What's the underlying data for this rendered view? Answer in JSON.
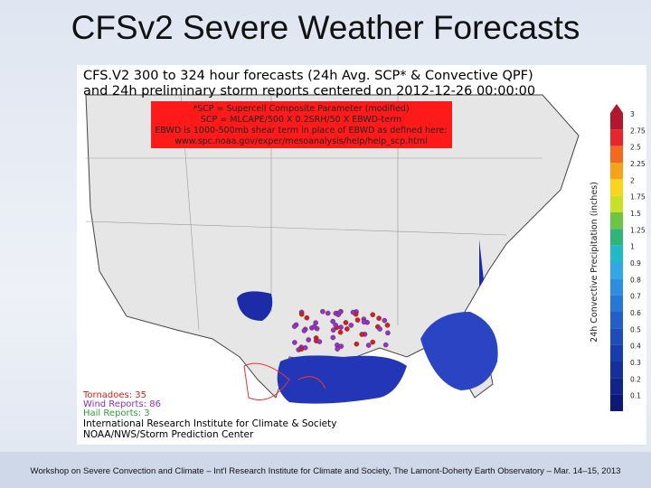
{
  "slide": {
    "title": "CFSv2 Severe Weather Forecasts",
    "map": {
      "title_lines": [
        "CFS.V2 300 to 324 hour forecasts (24h Avg. SCP* & Convective QPF)",
        "and 24h preliminary storm reports centered on 2012-12-26 00:00:00"
      ],
      "note_lines": [
        "*SCP = Supercell Composite Parameter (modified)",
        "SCP = MLCAPE/500 X 0.2SRH/50 X EBWD-term",
        "EBWD is 1000-500mb shear term in place of EBWD as defined here:",
        "www.spc.noaa.gov/exper/mesoanalysis/help/help_scp.html"
      ],
      "colorbar_label": "24h Convective Precipitation (inches)",
      "colorbar_ticks": [
        "3",
        "2.75",
        "2.5",
        "2.25",
        "2",
        "1.75",
        "1.5",
        "1.25",
        "1",
        "0.9",
        "0.8",
        "0.7",
        "0.6",
        "0.5",
        "0.4",
        "0.3",
        "0.2",
        "0.1"
      ],
      "reports": [
        "Tornadoes: 35",
        "Wind Reports: 86",
        "Hail Reports: 3"
      ],
      "credits": [
        "International Research Institute for Climate & Society",
        "NOAA/NWS/Storm Prediction Center"
      ]
    },
    "footer": "Workshop on Severe Convection and Climate – Int'l Research Institute for Climate and Society, The Lamont-Doherty Earth Observatory – Mar. 14–15, 2013"
  }
}
